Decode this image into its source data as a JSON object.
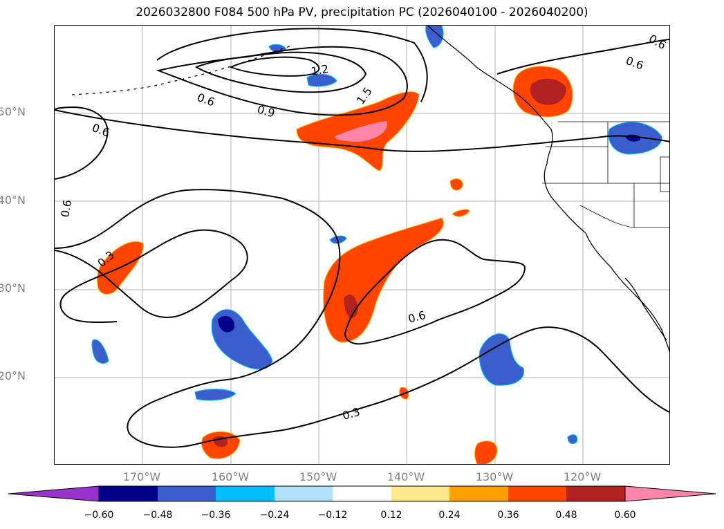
{
  "title": "2026032800 F084 500 hPa PV, precipitation PC (2026040100 - 2026040200)",
  "colors": {
    "background": "#ffffff",
    "contour": "#000000",
    "grid": "#b0b0b0",
    "axis_label": "#808080",
    "coastline": "#000000"
  },
  "map": {
    "lat_labels": [
      "50°N",
      "40°N",
      "30°N",
      "20°N"
    ],
    "lon_labels": [
      "170°W",
      "160°W",
      "150°W",
      "140°W",
      "130°W",
      "120°W"
    ],
    "contour_labels": [
      "0.6",
      "0.6",
      "0.9",
      "1.2",
      "1.5",
      "0.6",
      "0.6",
      "0.6",
      "0.3",
      "0.6",
      "0.3"
    ]
  },
  "colorbar": {
    "ticks": [
      "−0.60",
      "−0.48",
      "−0.36",
      "−0.24",
      "−0.12",
      "0.12",
      "0.24",
      "0.36",
      "0.48",
      "0.60"
    ],
    "colors": [
      "#9933cc",
      "#00008b",
      "#3a5fcd",
      "#00bfff",
      "#aee1f9",
      "#ffffff",
      "#ffe88c",
      "#ff9f00",
      "#ff4500",
      "#b22222",
      "#ff85a8"
    ]
  }
}
